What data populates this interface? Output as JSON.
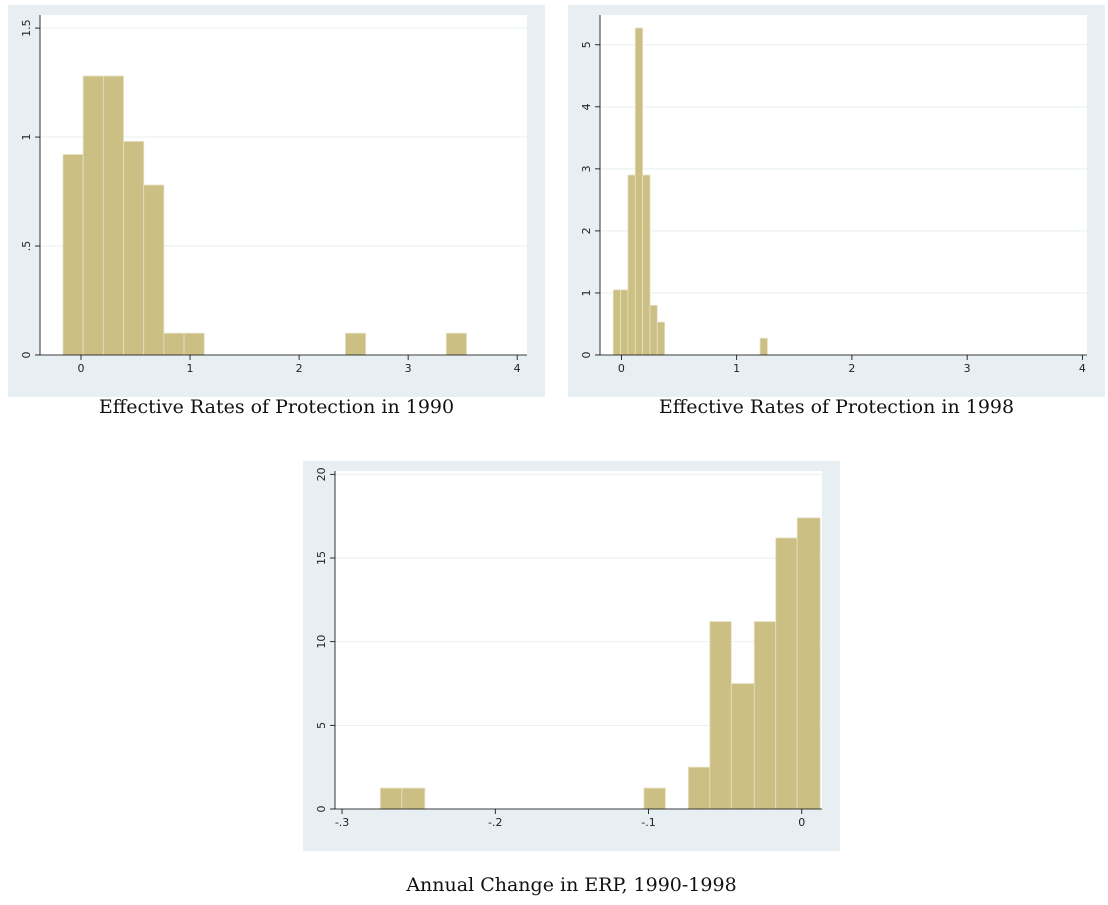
{
  "chart_data": [
    {
      "type": "histogram",
      "title": "Effective Rates of Protection in 1990",
      "bins": [
        -0.165,
        0.02,
        0.205,
        0.39,
        0.575,
        0.76,
        0.945,
        1.13,
        1.315,
        1.5,
        1.685,
        1.87,
        2.055,
        2.24,
        2.425,
        2.61,
        2.795,
        2.98,
        3.165,
        3.35,
        3.535
      ],
      "values": [
        0.92,
        1.28,
        1.28,
        0.98,
        0.78,
        0.1,
        0.1,
        0,
        0,
        0,
        0,
        0,
        0,
        0,
        0.1,
        0,
        0,
        0,
        0,
        0.1
      ],
      "color": "#ccbf84",
      "xlim": [
        -0.376,
        4.09
      ],
      "ylim": [
        0,
        1.56
      ],
      "xticks": [
        0,
        1,
        2,
        3,
        4
      ],
      "yticks": [
        0,
        {
          "value": 0.5,
          "label": ".5"
        },
        1,
        1.5
      ],
      "grid": true
    },
    {
      "type": "histogram",
      "title": "Effective Rates of Protection in 1998",
      "bins": [
        -0.071,
        -0.007,
        0.056,
        0.12,
        0.184,
        0.248,
        0.311,
        0.375,
        0.439,
        0.502,
        0.566,
        0.63,
        0.693,
        0.757,
        0.821,
        0.885,
        0.948,
        1.012,
        1.076,
        1.139,
        1.203,
        1.267
      ],
      "values": [
        1.05,
        1.05,
        2.9,
        5.27,
        2.9,
        0.8,
        0.53,
        0,
        0,
        0,
        0,
        0,
        0,
        0,
        0,
        0,
        0,
        0,
        0,
        0,
        0.27
      ],
      "color": "#ccbf84",
      "xlim": [
        -0.186,
        4.04
      ],
      "ylim": [
        0,
        5.48
      ],
      "xticks": [
        0,
        1,
        2,
        3,
        4
      ],
      "yticks": [
        0,
        1,
        2,
        3,
        4,
        5
      ],
      "grid": true
    },
    {
      "type": "histogram",
      "title": "Annual Change in ERP, 1990-1998",
      "bins": [
        -0.275,
        -0.261,
        -0.246,
        -0.232,
        -0.218,
        -0.203,
        -0.189,
        -0.175,
        -0.16,
        -0.146,
        -0.132,
        -0.117,
        -0.103,
        -0.089,
        -0.074,
        -0.06,
        -0.046,
        -0.031,
        -0.017,
        -0.003,
        0.012
      ],
      "values": [
        1.25,
        1.25,
        0,
        0,
        0,
        0,
        0,
        0,
        0,
        0,
        0,
        0,
        1.25,
        0,
        2.5,
        11.2,
        7.5,
        11.2,
        16.2,
        17.4
      ],
      "color": "#ccbf84",
      "xlim": [
        -0.3046,
        0.0132
      ],
      "ylim": [
        0,
        20.2
      ],
      "xticks": [
        {
          "value": -0.3,
          "label": "-.3"
        },
        {
          "value": -0.2,
          "label": "-.2"
        },
        {
          "value": -0.1,
          "label": "-.1"
        },
        0
      ],
      "yticks": [
        0,
        5,
        10,
        15,
        20
      ],
      "grid": true
    }
  ]
}
